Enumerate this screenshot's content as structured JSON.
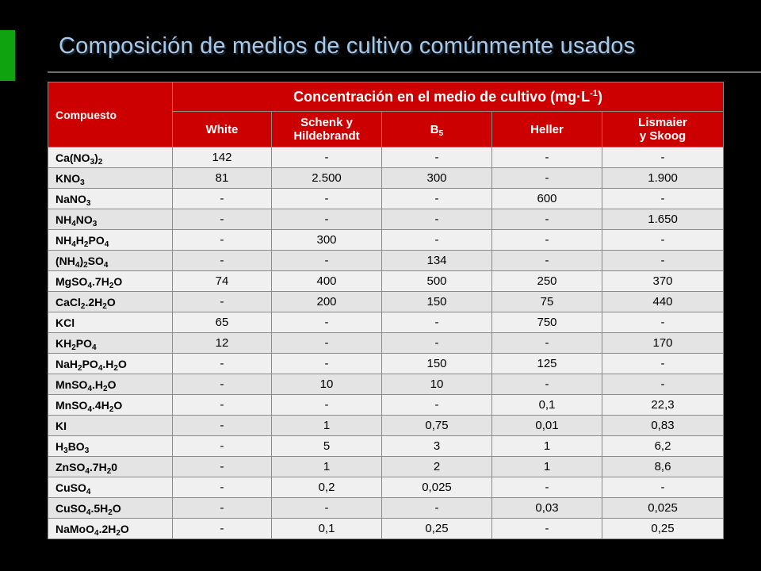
{
  "slide": {
    "title": "Composición de medios de cultivo comúnmente usados",
    "colors": {
      "background": "#000000",
      "accent": "#0fa30f",
      "header": "#cc0000",
      "title": "#a9c9e8"
    }
  },
  "table": {
    "compound_header": "Compuesto",
    "group_header": {
      "text": "Concentración en el medio de cultivo (mg·L",
      "sup": "-1",
      "close": ")"
    },
    "columns": [
      {
        "line1": "White",
        "line2": ""
      },
      {
        "line1": "Schenk y",
        "line2": "Hildebrandt"
      },
      {
        "line1": "B",
        "sub": "5",
        "line2": ""
      },
      {
        "line1": "Heller",
        "line2": ""
      },
      {
        "line1": "Lismaier",
        "line2": "y Skoog"
      }
    ],
    "rows": [
      {
        "compound": [
          [
            "Ca(NO",
            ""
          ],
          [
            "3",
            1
          ],
          [
            ")",
            ""
          ],
          [
            "2",
            1
          ]
        ],
        "values": [
          "142",
          "-",
          "-",
          "-",
          "-"
        ]
      },
      {
        "compound": [
          [
            "KNO",
            ""
          ],
          [
            "3",
            1
          ]
        ],
        "values": [
          "81",
          "2.500",
          "300",
          "-",
          "1.900"
        ]
      },
      {
        "compound": [
          [
            "NaNO",
            ""
          ],
          [
            "3",
            1
          ]
        ],
        "values": [
          "-",
          "-",
          "-",
          "600",
          "-"
        ]
      },
      {
        "compound": [
          [
            "NH",
            ""
          ],
          [
            "4",
            1
          ],
          [
            "NO",
            ""
          ],
          [
            "3",
            1
          ]
        ],
        "values": [
          "-",
          "-",
          "-",
          "-",
          "1.650"
        ]
      },
      {
        "compound": [
          [
            "NH",
            ""
          ],
          [
            "4",
            1
          ],
          [
            "H",
            ""
          ],
          [
            "2",
            1
          ],
          [
            "PO",
            ""
          ],
          [
            "4",
            1
          ]
        ],
        "values": [
          "-",
          "300",
          "-",
          "-",
          "-"
        ]
      },
      {
        "compound": [
          [
            "(NH",
            ""
          ],
          [
            "4",
            1
          ],
          [
            ")",
            ""
          ],
          [
            "2",
            1
          ],
          [
            "SO",
            ""
          ],
          [
            "4",
            1
          ]
        ],
        "values": [
          "-",
          "-",
          "134",
          "-",
          "-"
        ]
      },
      {
        "compound": [
          [
            "MgSO",
            ""
          ],
          [
            "4",
            1
          ],
          [
            ".7H",
            ""
          ],
          [
            "2",
            1
          ],
          [
            "O",
            ""
          ]
        ],
        "values": [
          "74",
          "400",
          "500",
          "250",
          "370"
        ]
      },
      {
        "compound": [
          [
            "CaCl",
            ""
          ],
          [
            "2",
            1
          ],
          [
            ".2H",
            ""
          ],
          [
            "2",
            1
          ],
          [
            "O",
            ""
          ]
        ],
        "values": [
          "-",
          "200",
          "150",
          "75",
          "440"
        ]
      },
      {
        "compound": [
          [
            "KCl",
            ""
          ]
        ],
        "values": [
          "65",
          "-",
          "-",
          "750",
          "-"
        ]
      },
      {
        "compound": [
          [
            "KH",
            ""
          ],
          [
            "2",
            1
          ],
          [
            "PO",
            ""
          ],
          [
            "4",
            1
          ]
        ],
        "values": [
          "12",
          "-",
          "-",
          "-",
          "170"
        ]
      },
      {
        "compound": [
          [
            "NaH",
            ""
          ],
          [
            "2",
            1
          ],
          [
            "PO",
            ""
          ],
          [
            "4",
            1
          ],
          [
            ".H",
            ""
          ],
          [
            "2",
            1
          ],
          [
            "O",
            ""
          ]
        ],
        "values": [
          "-",
          "-",
          "150",
          "125",
          "-"
        ]
      },
      {
        "compound": [
          [
            "MnSO",
            ""
          ],
          [
            "4",
            1
          ],
          [
            ".H",
            ""
          ],
          [
            "2",
            1
          ],
          [
            "O",
            ""
          ]
        ],
        "values": [
          "-",
          "10",
          "10",
          "-",
          "-"
        ]
      },
      {
        "compound": [
          [
            "MnSO",
            ""
          ],
          [
            "4",
            1
          ],
          [
            ".4H",
            ""
          ],
          [
            "2",
            1
          ],
          [
            "O",
            ""
          ]
        ],
        "values": [
          "-",
          "-",
          "-",
          "0,1",
          "22,3"
        ]
      },
      {
        "compound": [
          [
            "KI",
            ""
          ]
        ],
        "values": [
          "-",
          "1",
          "0,75",
          "0,01",
          "0,83"
        ]
      },
      {
        "compound": [
          [
            "H",
            ""
          ],
          [
            "3",
            1
          ],
          [
            "BO",
            ""
          ],
          [
            "3",
            1
          ]
        ],
        "values": [
          "-",
          "5",
          "3",
          "1",
          "6,2"
        ]
      },
      {
        "compound": [
          [
            "ZnSO",
            ""
          ],
          [
            "4",
            1
          ],
          [
            ".7H",
            ""
          ],
          [
            "2",
            1
          ],
          [
            "0",
            ""
          ]
        ],
        "values": [
          "-",
          "1",
          "2",
          "1",
          "8,6"
        ]
      },
      {
        "compound": [
          [
            "CuSO",
            ""
          ],
          [
            "4",
            1
          ]
        ],
        "values": [
          "-",
          "0,2",
          "0,025",
          "-",
          "-"
        ]
      },
      {
        "compound": [
          [
            "CuSO",
            ""
          ],
          [
            "4",
            1
          ],
          [
            ".5H",
            ""
          ],
          [
            "2",
            1
          ],
          [
            "O",
            ""
          ]
        ],
        "values": [
          "-",
          "-",
          "-",
          "0,03",
          "0,025"
        ]
      },
      {
        "compound": [
          [
            "NaMoO",
            ""
          ],
          [
            "4",
            1
          ],
          [
            ".2H",
            ""
          ],
          [
            "2",
            1
          ],
          [
            "O",
            ""
          ]
        ],
        "values": [
          "-",
          "0,1",
          "0,25",
          "-",
          "0,25"
        ]
      }
    ]
  }
}
